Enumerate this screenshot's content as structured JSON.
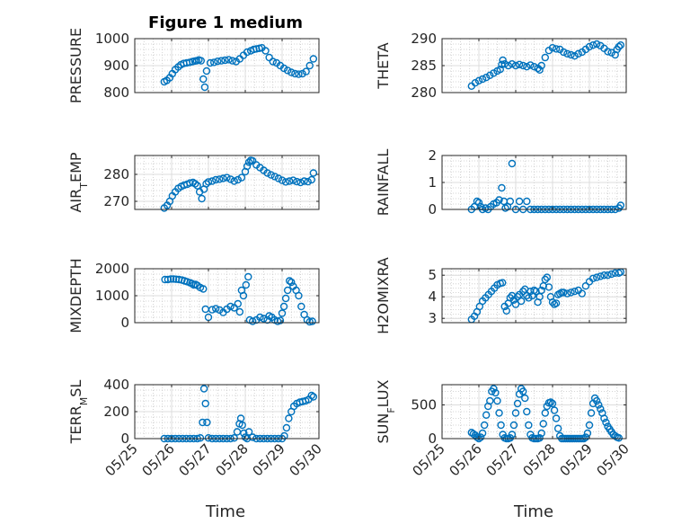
{
  "figure_title": "Figure 1 medium",
  "time_label": "Time",
  "date_ticks": [
    "05/25",
    "05/26",
    "05/27",
    "05/28",
    "05/29",
    "05/30"
  ],
  "colors": {
    "marker": "#0072BD",
    "axis": "#262626",
    "grid": "#c8c8c8"
  },
  "chart_data": [
    {
      "type": "scatter",
      "ylabel": "PRESSURE",
      "title": "Figure 1 medium",
      "xlim": [
        "05/25",
        "05/30"
      ],
      "ylim": [
        800,
        1000
      ],
      "yticks": [
        800,
        900,
        1000
      ],
      "grid": true,
      "x": [
        25.8,
        25.87,
        25.95,
        26.02,
        26.1,
        26.18,
        26.25,
        26.33,
        26.41,
        26.49,
        26.57,
        26.63,
        26.68,
        26.74,
        26.8,
        26.86,
        26.9,
        26.95,
        27.05,
        27.15,
        27.25,
        27.35,
        27.45,
        27.55,
        27.65,
        27.75,
        27.85,
        27.95,
        28.05,
        28.15,
        28.23,
        28.3,
        28.38,
        28.45,
        28.55,
        28.65,
        28.75,
        28.85,
        28.95,
        29.05,
        29.15,
        29.25,
        29.35,
        29.45,
        29.55,
        29.65,
        29.75,
        29.85
      ],
      "y": [
        840,
        845,
        855,
        870,
        885,
        895,
        903,
        908,
        910,
        912,
        915,
        917,
        918,
        921,
        918,
        850,
        820,
        880,
        910,
        912,
        916,
        918,
        920,
        922,
        918,
        915,
        925,
        938,
        950,
        955,
        960,
        962,
        964,
        966,
        955,
        930,
        915,
        910,
        900,
        890,
        882,
        875,
        870,
        868,
        870,
        878,
        900,
        925
      ]
    },
    {
      "type": "scatter",
      "ylabel": "THETA",
      "xlim": [
        "05/25",
        "05/30"
      ],
      "ylim": [
        280,
        290
      ],
      "yticks": [
        280,
        285,
        290
      ],
      "grid": true,
      "x": [
        25.8,
        25.9,
        26.0,
        26.1,
        26.2,
        26.3,
        26.4,
        26.5,
        26.58,
        26.62,
        26.65,
        26.7,
        26.8,
        26.9,
        27.0,
        27.1,
        27.2,
        27.3,
        27.4,
        27.5,
        27.6,
        27.65,
        27.7,
        27.8,
        27.9,
        28.0,
        28.1,
        28.2,
        28.3,
        28.4,
        28.5,
        28.6,
        28.7,
        28.8,
        28.9,
        29.0,
        29.1,
        29.2,
        29.3,
        29.4,
        29.5,
        29.6,
        29.7,
        29.75,
        29.8,
        29.85
      ],
      "y": [
        281.2,
        281.8,
        282.2,
        282.5,
        282.8,
        283.2,
        283.6,
        284.0,
        284.3,
        285.2,
        286.0,
        285.3,
        285.0,
        285.3,
        285.0,
        285.2,
        285.0,
        284.8,
        285.1,
        284.8,
        284.5,
        284.2,
        285.0,
        286.5,
        287.8,
        288.3,
        288.1,
        288.0,
        287.5,
        287.2,
        287.0,
        286.8,
        287.2,
        287.5,
        288.0,
        288.5,
        288.8,
        289.0,
        288.7,
        288.2,
        287.6,
        287.4,
        287.0,
        288.0,
        288.5,
        288.8
      ]
    },
    {
      "type": "scatter",
      "ylabel": "AIR_TEMP",
      "xlim": [
        "05/25",
        "05/30"
      ],
      "ylim": [
        267,
        287
      ],
      "yticks": [
        270,
        280
      ],
      "grid": true,
      "x": [
        25.8,
        25.88,
        25.95,
        26.02,
        26.1,
        26.18,
        26.26,
        26.34,
        26.42,
        26.5,
        26.58,
        26.64,
        26.7,
        26.76,
        26.82,
        26.88,
        26.94,
        27.0,
        27.1,
        27.2,
        27.3,
        27.4,
        27.5,
        27.6,
        27.7,
        27.8,
        27.9,
        28.0,
        28.05,
        28.1,
        28.15,
        28.2,
        28.3,
        28.4,
        28.5,
        28.6,
        28.7,
        28.8,
        28.9,
        29.0,
        29.1,
        29.2,
        29.3,
        29.4,
        29.5,
        29.6,
        29.7,
        29.8,
        29.85
      ],
      "y": [
        267.5,
        268.5,
        270.0,
        272.0,
        273.5,
        274.8,
        275.5,
        276.0,
        276.3,
        276.8,
        277.0,
        276.5,
        275.8,
        273.5,
        271.0,
        274.5,
        276.5,
        277.2,
        277.5,
        278.0,
        278.2,
        278.5,
        278.8,
        278.2,
        277.5,
        278.0,
        278.8,
        281.0,
        283.0,
        284.5,
        285.2,
        285.0,
        283.5,
        282.5,
        281.5,
        280.5,
        279.8,
        279.2,
        278.5,
        277.8,
        277.2,
        277.5,
        277.8,
        277.3,
        277.0,
        277.5,
        277.3,
        278.0,
        280.5
      ]
    },
    {
      "type": "scatter",
      "ylabel": "RAINFALL",
      "xlim": [
        "05/25",
        "05/30"
      ],
      "ylim": [
        0,
        2
      ],
      "yticks": [
        0,
        1,
        2
      ],
      "grid": true,
      "x": [
        25.8,
        25.88,
        25.95,
        26.0,
        26.05,
        26.1,
        26.18,
        26.25,
        26.32,
        26.4,
        26.48,
        26.55,
        26.62,
        26.68,
        26.72,
        26.78,
        26.85,
        26.9,
        27.0,
        27.1,
        27.2,
        27.3,
        27.4,
        27.5,
        27.6,
        27.7,
        27.8,
        27.9,
        28.0,
        28.1,
        28.2,
        28.3,
        28.4,
        28.5,
        28.6,
        28.7,
        28.8,
        28.9,
        29.0,
        29.1,
        29.2,
        29.3,
        29.4,
        29.5,
        29.6,
        29.7,
        29.8,
        29.85
      ],
      "y": [
        0,
        0.1,
        0.3,
        0.25,
        0.1,
        0.0,
        0.05,
        0.0,
        0.1,
        0.2,
        0.25,
        0.35,
        0.8,
        0.3,
        0.05,
        0.1,
        0.3,
        1.7,
        0.0,
        0.3,
        0.0,
        0.3,
        0,
        0,
        0,
        0,
        0,
        0,
        0,
        0,
        0,
        0,
        0,
        0,
        0,
        0,
        0,
        0,
        0,
        0,
        0,
        0,
        0,
        0,
        0,
        0,
        0.05,
        0.15
      ]
    },
    {
      "type": "scatter",
      "ylabel": "MIXDEPTH",
      "xlim": [
        "05/25",
        "05/30"
      ],
      "ylim": [
        0,
        2000
      ],
      "yticks": [
        0,
        1000,
        2000
      ],
      "grid": true,
      "x": [
        25.82,
        25.9,
        25.98,
        26.05,
        26.12,
        26.2,
        26.28,
        26.35,
        26.42,
        26.5,
        26.55,
        26.6,
        26.65,
        26.7,
        26.78,
        26.86,
        26.92,
        27.0,
        27.1,
        27.2,
        27.3,
        27.4,
        27.5,
        27.6,
        27.7,
        27.8,
        27.85,
        27.9,
        27.95,
        28.02,
        28.08,
        28.12,
        28.2,
        28.3,
        28.4,
        28.5,
        28.6,
        28.65,
        28.72,
        28.8,
        28.88,
        28.95,
        29.0,
        29.05,
        29.1,
        29.15,
        29.2,
        29.25,
        29.3,
        29.38,
        29.45,
        29.52,
        29.6,
        29.68,
        29.75,
        29.82
      ],
      "y": [
        1600,
        1600,
        1620,
        1620,
        1610,
        1600,
        1580,
        1550,
        1520,
        1480,
        1450,
        1400,
        1420,
        1380,
        1300,
        1250,
        500,
        200,
        480,
        520,
        470,
        380,
        500,
        600,
        550,
        700,
        400,
        1200,
        1000,
        1400,
        1700,
        100,
        50,
        100,
        200,
        150,
        100,
        250,
        200,
        100,
        50,
        80,
        350,
        600,
        900,
        1200,
        1550,
        1500,
        1350,
        1200,
        1000,
        600,
        300,
        100,
        30,
        50
      ]
    },
    {
      "type": "scatter",
      "ylabel": "H2OMIXRA",
      "xlim": [
        "05/25",
        "05/30"
      ],
      "ylim": [
        2.8,
        5.3
      ],
      "yticks": [
        3,
        4,
        5
      ],
      "grid": true,
      "x": [
        25.8,
        25.88,
        25.95,
        26.02,
        26.1,
        26.18,
        26.26,
        26.34,
        26.42,
        26.5,
        26.58,
        26.64,
        26.7,
        26.75,
        26.8,
        26.85,
        26.9,
        26.95,
        27.0,
        27.05,
        27.1,
        27.15,
        27.2,
        27.25,
        27.3,
        27.35,
        27.4,
        27.45,
        27.5,
        27.55,
        27.6,
        27.65,
        27.7,
        27.75,
        27.8,
        27.85,
        27.9,
        27.95,
        28.0,
        28.05,
        28.1,
        28.15,
        28.2,
        28.25,
        28.3,
        28.4,
        28.5,
        28.6,
        28.7,
        28.8,
        28.9,
        29.0,
        29.1,
        29.2,
        29.3,
        29.4,
        29.5,
        29.6,
        29.7,
        29.8,
        29.85
      ],
      "y": [
        2.95,
        3.1,
        3.3,
        3.55,
        3.8,
        3.95,
        4.1,
        4.25,
        4.4,
        4.55,
        4.62,
        4.65,
        3.55,
        3.35,
        3.7,
        3.95,
        4.05,
        3.85,
        3.65,
        4.0,
        4.1,
        3.8,
        4.25,
        4.35,
        4.05,
        3.95,
        4.25,
        4.05,
        4.3,
        4.25,
        3.75,
        4.0,
        4.3,
        4.5,
        4.8,
        4.9,
        4.45,
        4.0,
        3.75,
        3.65,
        3.7,
        4.1,
        4.15,
        4.2,
        4.2,
        4.15,
        4.2,
        4.25,
        4.3,
        4.15,
        4.5,
        4.7,
        4.85,
        4.9,
        4.95,
        5.0,
        5.0,
        5.05,
        5.1,
        5.1,
        5.15
      ]
    },
    {
      "type": "scatter",
      "ylabel": "TERR_MSL",
      "xlim": [
        "05/25",
        "05/30"
      ],
      "ylim": [
        0,
        400
      ],
      "yticks": [
        0,
        200,
        400
      ],
      "grid": true,
      "x": [
        25.8,
        25.9,
        26.0,
        26.1,
        26.2,
        26.3,
        26.4,
        26.5,
        26.6,
        26.7,
        26.78,
        26.84,
        26.88,
        26.92,
        26.96,
        27.0,
        27.1,
        27.2,
        27.3,
        27.4,
        27.5,
        27.6,
        27.7,
        27.78,
        27.84,
        27.88,
        27.92,
        27.96,
        28.0,
        28.05,
        28.1,
        28.2,
        28.3,
        28.4,
        28.5,
        28.6,
        28.7,
        28.8,
        28.9,
        29.0,
        29.06,
        29.12,
        29.18,
        29.25,
        29.32,
        29.4,
        29.48,
        29.56,
        29.64,
        29.72,
        29.8,
        29.85
      ],
      "y": [
        0,
        0,
        0,
        0,
        0,
        0,
        0,
        0,
        0,
        0,
        5,
        120,
        370,
        260,
        120,
        5,
        0,
        0,
        0,
        0,
        0,
        0,
        5,
        50,
        110,
        150,
        100,
        40,
        10,
        0,
        50,
        10,
        0,
        0,
        0,
        0,
        0,
        0,
        0,
        0,
        20,
        80,
        150,
        200,
        240,
        260,
        270,
        275,
        280,
        290,
        320,
        310
      ]
    },
    {
      "type": "scatter",
      "ylabel": "SUN_FLUX",
      "xlim": [
        "05/25",
        "05/30"
      ],
      "ylim": [
        0,
        800
      ],
      "yticks": [
        0,
        500
      ],
      "grid": true,
      "x": [
        25.8,
        25.85,
        25.9,
        25.95,
        26.0,
        26.05,
        26.1,
        26.15,
        26.2,
        26.25,
        26.3,
        26.35,
        26.4,
        26.45,
        26.5,
        26.55,
        26.6,
        26.65,
        26.7,
        26.75,
        26.8,
        26.85,
        26.9,
        26.95,
        27.0,
        27.05,
        27.1,
        27.15,
        27.2,
        27.25,
        27.3,
        27.35,
        27.4,
        27.45,
        27.5,
        27.55,
        27.6,
        27.65,
        27.7,
        27.75,
        27.8,
        27.85,
        27.9,
        27.95,
        28.0,
        28.05,
        28.1,
        28.15,
        28.2,
        28.25,
        28.3,
        28.35,
        28.4,
        28.45,
        28.5,
        28.55,
        28.6,
        28.65,
        28.7,
        28.75,
        28.8,
        28.85,
        28.9,
        28.95,
        29.0,
        29.05,
        29.1,
        29.15,
        29.2,
        29.25,
        29.3,
        29.35,
        29.4,
        29.45,
        29.5,
        29.55,
        29.6,
        29.65,
        29.7,
        29.75,
        29.8
      ],
      "y": [
        90,
        70,
        50,
        20,
        0,
        20,
        80,
        200,
        350,
        480,
        560,
        700,
        740,
        680,
        560,
        380,
        200,
        60,
        10,
        0,
        0,
        10,
        60,
        200,
        380,
        520,
        660,
        740,
        700,
        600,
        400,
        200,
        60,
        10,
        0,
        0,
        0,
        10,
        80,
        220,
        380,
        480,
        530,
        540,
        520,
        420,
        300,
        150,
        40,
        0,
        0,
        0,
        0,
        0,
        0,
        0,
        0,
        0,
        0,
        0,
        0,
        0,
        20,
        80,
        200,
        380,
        520,
        600,
        560,
        500,
        440,
        380,
        300,
        240,
        180,
        140,
        100,
        60,
        40,
        20,
        10
      ]
    }
  ]
}
